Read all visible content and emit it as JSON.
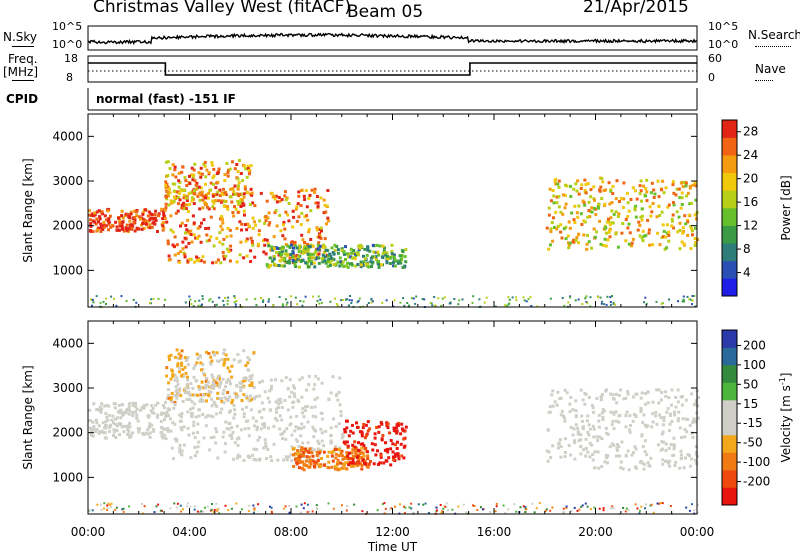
{
  "header": {
    "station": "Christmas Valley West (fitACF)",
    "beam": "Beam 05",
    "date": "21/Apr/2015"
  },
  "nsky_panel": {
    "left_label": "N.Sky",
    "left_ticks": [
      "10^5",
      "10^0"
    ],
    "right_ticks": [
      "10^5",
      "10^0"
    ],
    "right_label": "N.Search"
  },
  "freq_panel": {
    "left_label_1": "Freq.",
    "left_label_2": "[MHz]",
    "left_ticks": [
      "18",
      "8"
    ],
    "right_ticks": [
      "60",
      "0"
    ],
    "right_label": "Nave"
  },
  "cpid": {
    "label": "CPID",
    "value": "normal (fast) -151 IF"
  },
  "chart_data": [
    {
      "type": "heatmap",
      "title": "Power",
      "xlabel": "",
      "ylabel": "Slant Range [km]",
      "xlim": [
        "00:00",
        "24:00"
      ],
      "ylim": [
        180,
        4500
      ],
      "y_ticks": [
        "4000",
        "3000",
        "2000",
        "1000"
      ],
      "colorbar": {
        "label": "Power [dB]",
        "ticks": [
          "28",
          "24",
          "20",
          "16",
          "12",
          "8",
          "4"
        ],
        "range": [
          0,
          30
        ]
      },
      "echo_bands": [
        {
          "from": "00:00",
          "to": "03:00",
          "range_km": [
            1900,
            2400
          ],
          "power_db": 28
        },
        {
          "from": "03:00",
          "to": "09:30",
          "range_km": [
            1200,
            2900
          ],
          "power_db": 24
        },
        {
          "from": "03:00",
          "to": "06:30",
          "range_km": [
            2400,
            3500
          ],
          "power_db": 22
        },
        {
          "from": "07:00",
          "to": "12:30",
          "range_km": [
            1100,
            1600
          ],
          "power_db": 12
        },
        {
          "from": "18:00",
          "to": "24:00",
          "range_km": [
            1500,
            3100
          ],
          "power_db": 20
        }
      ]
    },
    {
      "type": "heatmap",
      "title": "Velocity",
      "xlabel": "Time UT",
      "ylabel": "Slant Range [km]",
      "xlim": [
        "00:00",
        "24:00"
      ],
      "ylim": [
        180,
        4500
      ],
      "x_ticks": [
        "00:00",
        "04:00",
        "08:00",
        "12:00",
        "16:00",
        "20:00",
        "00:00"
      ],
      "y_ticks": [
        "4000",
        "3000",
        "2000",
        "1000"
      ],
      "colorbar": {
        "label": "Velocity [m s",
        "label_sup": "-1",
        "label_end": "]",
        "ticks": [
          "200",
          "100",
          "50",
          "15",
          "-15",
          "-50",
          "-100",
          "-200"
        ],
        "range": [
          -250,
          250
        ]
      },
      "echo_bands": [
        {
          "from": "00:00",
          "to": "03:00",
          "range_km": [
            1900,
            2700
          ],
          "velocity": 0
        },
        {
          "from": "03:00",
          "to": "06:30",
          "range_km": [
            2700,
            3900
          ],
          "velocity": -60
        },
        {
          "from": "03:00",
          "to": "10:00",
          "range_km": [
            1400,
            3300
          ],
          "velocity": 0
        },
        {
          "from": "08:00",
          "to": "11:00",
          "range_km": [
            1200,
            1700
          ],
          "velocity": -120
        },
        {
          "from": "10:00",
          "to": "12:30",
          "range_km": [
            1300,
            2300
          ],
          "velocity": -230
        },
        {
          "from": "18:00",
          "to": "24:00",
          "range_km": [
            1200,
            3000
          ],
          "velocity": 0
        }
      ]
    }
  ]
}
